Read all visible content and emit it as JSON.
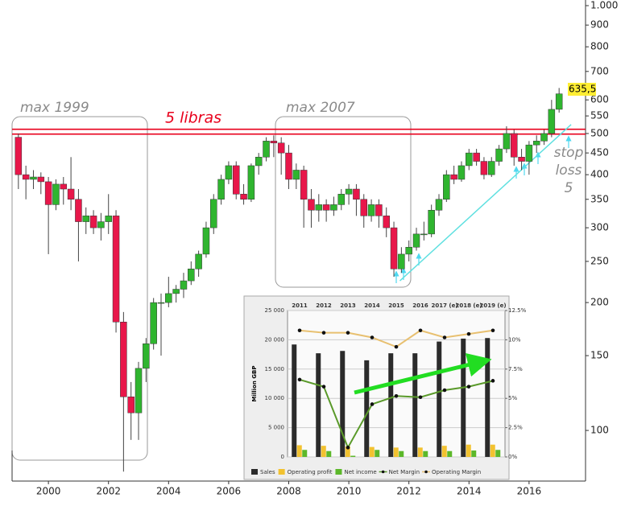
{
  "chart_data": [
    {
      "type": "candlestick",
      "log_scale": true,
      "grid": false,
      "up_color": "#2fb52f",
      "down_color": "#e8174a",
      "x": [
        1999,
        1999.25,
        1999.5,
        1999.75,
        2000,
        2000.25,
        2000.5,
        2000.75,
        2001,
        2001.25,
        2001.5,
        2001.75,
        2002,
        2002.25,
        2002.5,
        2002.75,
        2003,
        2003.25,
        2003.5,
        2003.75,
        2004,
        2004.25,
        2004.5,
        2004.75,
        2005,
        2005.25,
        2005.5,
        2005.75,
        2006,
        2006.25,
        2006.5,
        2006.75,
        2007,
        2007.25,
        2007.5,
        2007.75,
        2008,
        2008.25,
        2008.5,
        2008.75,
        2009,
        2009.25,
        2009.5,
        2009.75,
        2010,
        2010.25,
        2010.5,
        2010.75,
        2011,
        2011.25,
        2011.5,
        2011.75,
        2012,
        2012.25,
        2012.5,
        2012.75,
        2013,
        2013.25,
        2013.5,
        2013.75,
        2014,
        2014.25,
        2014.5,
        2014.75,
        2015,
        2015.25,
        2015.5,
        2015.75,
        2016,
        2016.25,
        2016.5,
        2016.75,
        2017
      ],
      "open": [
        490,
        400,
        390,
        395,
        385,
        340,
        380,
        370,
        350,
        310,
        320,
        300,
        310,
        320,
        180,
        120,
        110,
        140,
        160,
        200,
        200,
        210,
        215,
        225,
        240,
        260,
        300,
        350,
        390,
        420,
        360,
        350,
        420,
        440,
        480,
        475,
        450,
        390,
        410,
        350,
        330,
        340,
        330,
        340,
        360,
        370,
        350,
        320,
        340,
        320,
        300,
        240,
        260,
        270,
        290,
        290,
        330,
        350,
        400,
        390,
        420,
        450,
        430,
        400,
        430,
        460,
        500,
        440,
        430,
        470,
        480,
        500,
        570
      ],
      "high": [
        500,
        420,
        410,
        405,
        395,
        390,
        395,
        440,
        370,
        335,
        330,
        325,
        360,
        330,
        190,
        130,
        145,
        165,
        205,
        210,
        230,
        220,
        235,
        250,
        265,
        310,
        360,
        400,
        430,
        430,
        380,
        425,
        450,
        490,
        495,
        490,
        470,
        425,
        420,
        370,
        360,
        350,
        355,
        370,
        380,
        380,
        360,
        350,
        350,
        335,
        310,
        270,
        280,
        300,
        310,
        340,
        360,
        410,
        420,
        430,
        460,
        460,
        440,
        440,
        470,
        520,
        510,
        460,
        480,
        495,
        510,
        600,
        640
      ],
      "low": [
        370,
        350,
        370,
        360,
        260,
        330,
        340,
        330,
        250,
        290,
        290,
        280,
        290,
        170,
        80,
        95,
        95,
        130,
        155,
        150,
        195,
        200,
        205,
        220,
        230,
        255,
        290,
        340,
        380,
        350,
        340,
        345,
        400,
        430,
        440,
        400,
        370,
        370,
        300,
        300,
        310,
        310,
        320,
        330,
        340,
        320,
        300,
        310,
        300,
        285,
        230,
        235,
        250,
        265,
        280,
        285,
        320,
        345,
        380,
        385,
        410,
        420,
        390,
        395,
        420,
        450,
        420,
        410,
        400,
        450,
        470,
        490,
        560
      ],
      "close": [
        400,
        390,
        395,
        385,
        340,
        380,
        370,
        350,
        310,
        320,
        300,
        310,
        320,
        180,
        120,
        110,
        140,
        160,
        200,
        200,
        210,
        215,
        225,
        240,
        260,
        300,
        350,
        390,
        420,
        360,
        350,
        420,
        440,
        480,
        475,
        450,
        390,
        410,
        350,
        330,
        340,
        330,
        340,
        360,
        370,
        350,
        320,
        340,
        320,
        300,
        240,
        260,
        270,
        290,
        290,
        330,
        350,
        400,
        390,
        420,
        450,
        430,
        400,
        430,
        460,
        500,
        440,
        430,
        470,
        480,
        500,
        570,
        620
      ],
      "xlim": [
        1998.79,
        2017.88
      ],
      "xticks": [
        2000,
        2002,
        2004,
        2006,
        2008,
        2010,
        2012,
        2014,
        2016
      ],
      "ylim": [
        76,
        1031
      ],
      "yticks": [
        {
          "value": 1000,
          "label": "1.000"
        },
        900,
        800,
        700,
        600,
        550,
        500,
        450,
        400,
        350,
        300,
        250,
        200,
        150,
        100
      ],
      "last_price": {
        "value": 635.5,
        "label": "635,5"
      },
      "resistance": {
        "value": 505,
        "label": "5 libras",
        "color": "#e8001c"
      },
      "trend_line": {
        "x": [
          2011.7,
          2017.4
        ],
        "values": [
          225,
          525
        ],
        "color": "#5fe0e0"
      },
      "annotations": [
        "max 1999",
        "max 2007",
        "stop",
        "loss",
        "5"
      ]
    },
    {
      "type": "bar_line",
      "categories": [
        "2011",
        "2012",
        "2013",
        "2014",
        "2015",
        "2016",
        "2017 (e)",
        "2018 (e)",
        "2019 (e)"
      ],
      "y_label": "Million GBP",
      "ylim": [
        0,
        25000
      ],
      "yticks": [
        0,
        {
          "value": 5000,
          "label": "5 000"
        },
        {
          "value": 10000,
          "label": "10 000"
        },
        {
          "value": 15000,
          "label": "15 000"
        },
        {
          "value": 20000,
          "label": "20 000"
        },
        {
          "value": 25000,
          "label": "25 000"
        }
      ],
      "y2lim": [
        0,
        12.5
      ],
      "y2ticks": [
        {
          "value": 0,
          "label": "0%"
        },
        {
          "value": 2.5,
          "label": "2.5%"
        },
        {
          "value": 5,
          "label": "5%"
        },
        {
          "value": 7.5,
          "label": "7.5%"
        },
        {
          "value": 10,
          "label": "10%"
        },
        {
          "value": 12.5,
          "label": "12.5%"
        }
      ],
      "series": [
        {
          "name": "Sales",
          "kind": "bar",
          "color": "#2b2b2b",
          "values": [
            19200,
            17700,
            18100,
            16500,
            17700,
            17700,
            19700,
            20200,
            20300
          ]
        },
        {
          "name": "Operating profit",
          "kind": "bar",
          "color": "#f2c230",
          "values": [
            2000,
            1900,
            1800,
            1700,
            1600,
            1600,
            1900,
            2100,
            2100
          ]
        },
        {
          "name": "Net income",
          "kind": "bar",
          "color": "#5cb82a",
          "values": [
            1200,
            1000,
            200,
            1200,
            1000,
            1000,
            1000,
            1100,
            1200
          ]
        },
        {
          "name": "Net Margin",
          "kind": "line",
          "axis": "y2",
          "color": "#5a9a2a",
          "values": [
            6.6,
            6.0,
            0.8,
            4.5,
            5.2,
            5.1,
            5.7,
            6.0,
            6.5
          ]
        },
        {
          "name": "Operating Margin",
          "kind": "line",
          "axis": "y2",
          "color": "#e8c070",
          "values": [
            10.8,
            10.6,
            10.6,
            10.2,
            9.4,
            10.8,
            10.2,
            10.5,
            10.8
          ]
        }
      ]
    }
  ]
}
